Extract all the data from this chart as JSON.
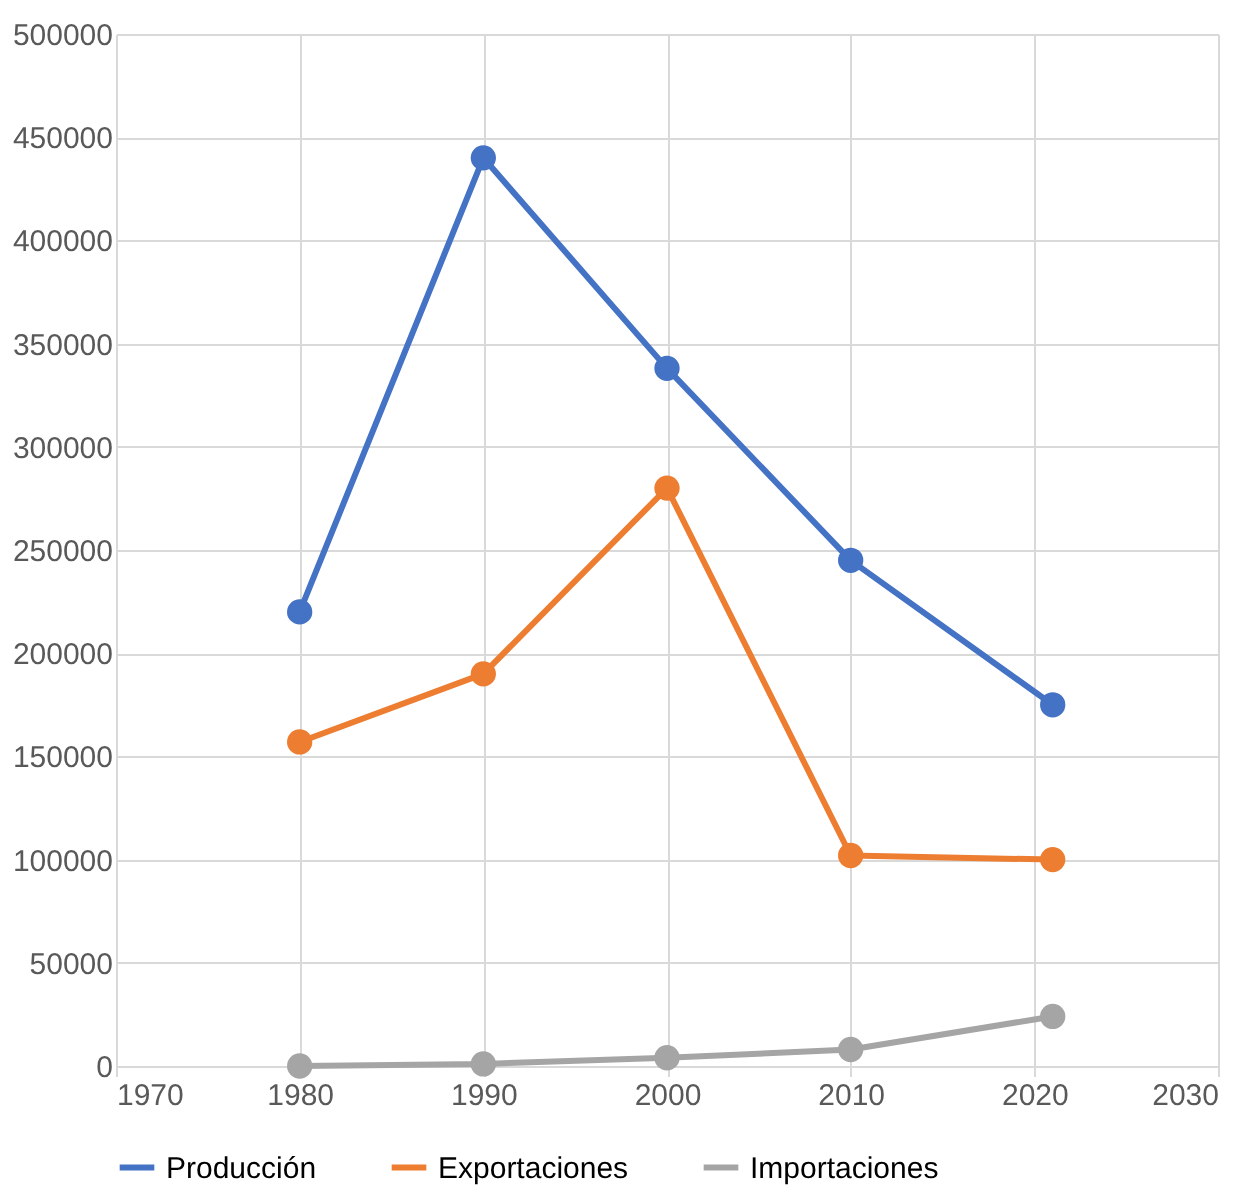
{
  "chart_data": {
    "type": "line",
    "x": [
      1980,
      1990,
      2000,
      2010,
      2021
    ],
    "series": [
      {
        "name": "Producción",
        "color": "#4472c4",
        "values": [
          220000,
          440000,
          338000,
          245000,
          175000
        ]
      },
      {
        "name": "Exportaciones",
        "color": "#ed7d31",
        "values": [
          157000,
          190000,
          280000,
          102000,
          100000
        ]
      },
      {
        "name": "Importaciones",
        "color": "#a5a5a5",
        "values": [
          0,
          1000,
          4000,
          8000,
          24000
        ]
      }
    ],
    "xlim": [
      1970,
      2030
    ],
    "xticks": [
      1970,
      1980,
      1990,
      2000,
      2010,
      2020,
      2030
    ],
    "ylim": [
      0,
      500000
    ],
    "yticks": [
      0,
      50000,
      100000,
      150000,
      200000,
      250000,
      300000,
      350000,
      400000,
      450000,
      500000
    ],
    "grid": true,
    "legend": "bottom",
    "marker": "circle",
    "line_style": "solid"
  }
}
